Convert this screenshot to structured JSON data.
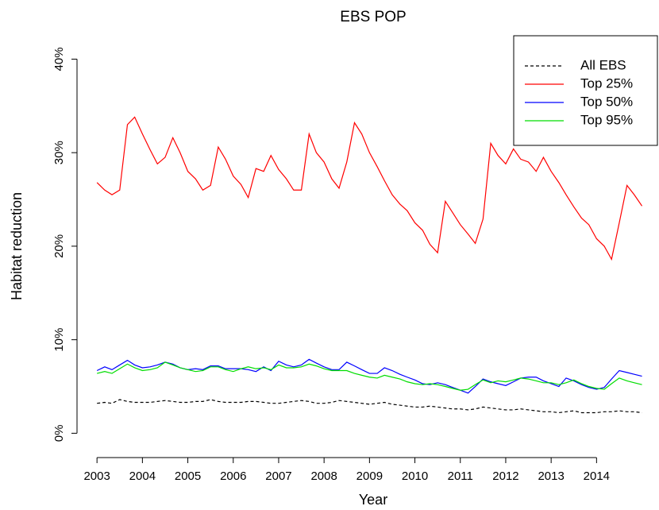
{
  "chart_data": {
    "type": "line",
    "title": "EBS POP",
    "x_label": "Year",
    "y_label": "Habitat reduction",
    "x": [
      2003,
      2003.17,
      2003.33,
      2003.5,
      2003.67,
      2003.83,
      2004,
      2004.17,
      2004.33,
      2004.5,
      2004.67,
      2004.83,
      2005,
      2005.17,
      2005.33,
      2005.5,
      2005.67,
      2005.83,
      2006,
      2006.17,
      2006.33,
      2006.5,
      2006.67,
      2006.83,
      2007,
      2007.17,
      2007.33,
      2007.5,
      2007.67,
      2007.83,
      2008,
      2008.17,
      2008.33,
      2008.5,
      2008.67,
      2008.83,
      2009,
      2009.17,
      2009.33,
      2009.5,
      2009.67,
      2009.83,
      2010,
      2010.17,
      2010.33,
      2010.5,
      2010.67,
      2010.83,
      2011,
      2011.17,
      2011.33,
      2011.5,
      2011.67,
      2011.83,
      2012,
      2012.17,
      2012.33,
      2012.5,
      2012.67,
      2012.83,
      2013,
      2013.17,
      2013.33,
      2013.5,
      2013.67,
      2013.83,
      2014,
      2014.17,
      2014.33,
      2014.5,
      2014.67,
      2014.83,
      2015
    ],
    "series": [
      {
        "name": "All EBS",
        "color": "#000000",
        "line_style": "dashed",
        "values": [
          3.2,
          3.3,
          3.2,
          3.6,
          3.4,
          3.3,
          3.3,
          3.3,
          3.4,
          3.5,
          3.4,
          3.3,
          3.3,
          3.4,
          3.4,
          3.6,
          3.4,
          3.3,
          3.3,
          3.3,
          3.4,
          3.4,
          3.3,
          3.2,
          3.2,
          3.3,
          3.4,
          3.5,
          3.4,
          3.2,
          3.2,
          3.3,
          3.5,
          3.4,
          3.3,
          3.2,
          3.1,
          3.2,
          3.3,
          3.1,
          3.0,
          2.9,
          2.8,
          2.8,
          2.9,
          2.8,
          2.7,
          2.6,
          2.6,
          2.5,
          2.6,
          2.8,
          2.7,
          2.6,
          2.5,
          2.5,
          2.6,
          2.5,
          2.4,
          2.3,
          2.3,
          2.2,
          2.3,
          2.4,
          2.2,
          2.2,
          2.2,
          2.3,
          2.3,
          2.4,
          2.3,
          2.3,
          2.2
        ]
      },
      {
        "name": "Top 25%",
        "color": "#ff0000",
        "line_style": "solid",
        "values": [
          26.8,
          26.0,
          25.5,
          26.0,
          33.0,
          33.8,
          32.0,
          30.3,
          28.8,
          29.5,
          31.6,
          30.0,
          28.0,
          27.2,
          26.0,
          26.5,
          30.6,
          29.3,
          27.5,
          26.6,
          25.2,
          28.3,
          28.0,
          29.7,
          28.2,
          27.2,
          26.0,
          26.0,
          32.0,
          30.0,
          29.0,
          27.2,
          26.2,
          29.0,
          33.2,
          32.0,
          30.0,
          28.5,
          27.0,
          25.5,
          24.5,
          23.8,
          22.5,
          21.7,
          20.2,
          19.3,
          24.8,
          23.6,
          22.3,
          21.3,
          20.3,
          22.9,
          31.0,
          29.7,
          28.8,
          30.4,
          29.3,
          29.0,
          28.0,
          29.5,
          28.0,
          26.8,
          25.5,
          24.2,
          23.0,
          22.3,
          20.8,
          20.0,
          18.6,
          22.5,
          26.5,
          25.5,
          24.3
        ]
      },
      {
        "name": "Top 50%",
        "color": "#0000ff",
        "line_style": "solid",
        "values": [
          6.7,
          7.1,
          6.8,
          7.3,
          7.8,
          7.3,
          7.0,
          7.1,
          7.3,
          7.6,
          7.4,
          7.0,
          6.8,
          6.9,
          6.8,
          7.2,
          7.2,
          6.9,
          6.9,
          6.9,
          6.8,
          6.6,
          7.1,
          6.7,
          7.7,
          7.3,
          7.1,
          7.3,
          7.9,
          7.5,
          7.1,
          6.8,
          6.8,
          7.6,
          7.2,
          6.8,
          6.4,
          6.4,
          7.0,
          6.7,
          6.3,
          6.0,
          5.7,
          5.3,
          5.2,
          5.4,
          5.2,
          4.9,
          4.6,
          4.3,
          5.0,
          5.8,
          5.5,
          5.3,
          5.1,
          5.5,
          5.9,
          6.0,
          6.0,
          5.6,
          5.3,
          5.0,
          5.9,
          5.6,
          5.2,
          4.9,
          4.7,
          4.9,
          5.8,
          6.7,
          6.5,
          6.3,
          6.1
        ]
      },
      {
        "name": "Top 95%",
        "color": "#00dd00",
        "line_style": "solid",
        "values": [
          6.4,
          6.6,
          6.4,
          6.9,
          7.4,
          7.0,
          6.7,
          6.8,
          7.0,
          7.6,
          7.3,
          7.0,
          6.8,
          6.6,
          6.7,
          7.1,
          7.1,
          6.8,
          6.6,
          6.9,
          7.1,
          6.9,
          7.0,
          6.8,
          7.3,
          7.0,
          7.0,
          7.1,
          7.4,
          7.2,
          6.9,
          6.7,
          6.7,
          6.7,
          6.4,
          6.2,
          6.0,
          5.9,
          6.2,
          6.0,
          5.8,
          5.5,
          5.3,
          5.2,
          5.3,
          5.2,
          5.0,
          4.8,
          4.6,
          4.7,
          5.2,
          5.7,
          5.4,
          5.6,
          5.5,
          5.7,
          5.9,
          5.8,
          5.6,
          5.4,
          5.4,
          5.2,
          5.4,
          5.7,
          5.3,
          5.0,
          4.8,
          4.7,
          5.3,
          5.9,
          5.6,
          5.4,
          5.2
        ]
      }
    ],
    "xlim": [
      2002.56,
      2015.34
    ],
    "xticks": [
      2003,
      2004,
      2005,
      2006,
      2007,
      2008,
      2009,
      2010,
      2011,
      2012,
      2013,
      2014
    ],
    "ylim": [
      -2.6,
      42.5
    ],
    "yticks": [
      {
        "value": 0,
        "label": "0%"
      },
      {
        "value": 10,
        "label": "10%"
      },
      {
        "value": 20,
        "label": "20%"
      },
      {
        "value": 30,
        "label": "30%"
      },
      {
        "value": 40,
        "label": "40%"
      }
    ],
    "legend": "topright"
  }
}
